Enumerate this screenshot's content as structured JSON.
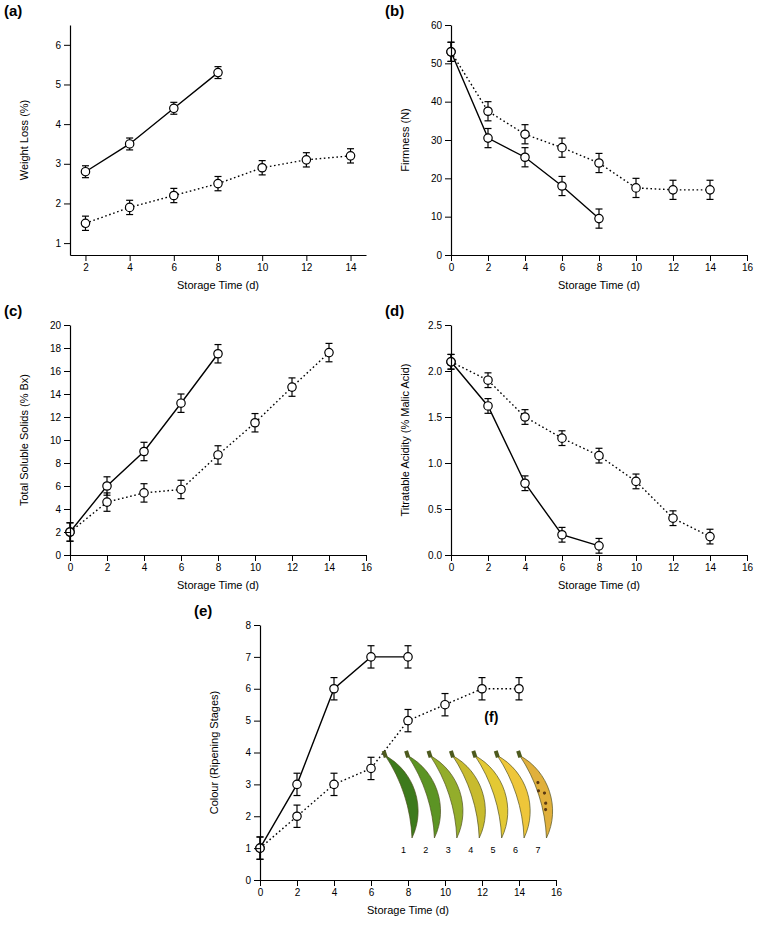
{
  "chart_data": [
    {
      "type": "line",
      "label": "(a)",
      "x_label": "Storage Time (d)",
      "y_label": "Weight Loss (%)",
      "xlim": [
        1.3,
        14.7
      ],
      "xticks": [
        2,
        4,
        6,
        8,
        10,
        12,
        14
      ],
      "ylim": [
        0.7,
        6.5
      ],
      "yticks": [
        1,
        2,
        3,
        4,
        5,
        6
      ],
      "series": [
        {
          "color": "#000000",
          "line_style": "solid",
          "marker": "circle",
          "x": [
            2,
            4,
            6,
            8
          ],
          "values": [
            2.8,
            3.5,
            4.4,
            5.3
          ],
          "errors": [
            0.15,
            0.15,
            0.15,
            0.15
          ]
        },
        {
          "color": "#000000",
          "line_style": "dotted",
          "marker": "circle",
          "x": [
            2,
            4,
            6,
            8,
            10,
            12,
            14
          ],
          "values": [
            1.5,
            1.9,
            2.2,
            2.5,
            2.9,
            3.1,
            3.2
          ],
          "errors": [
            0.18,
            0.18,
            0.18,
            0.18,
            0.18,
            0.18,
            0.18
          ]
        }
      ]
    },
    {
      "type": "line",
      "label": "(b)",
      "x_label": "Storage Time (d)",
      "y_label": "Firmness (N)",
      "xlim": [
        0,
        16
      ],
      "xticks": [
        0,
        2,
        4,
        6,
        8,
        10,
        12,
        14,
        16
      ],
      "ylim": [
        0,
        60
      ],
      "yticks": [
        0,
        10,
        20,
        30,
        40,
        50,
        60
      ],
      "series": [
        {
          "color": "#000000",
          "line_style": "solid",
          "marker": "circle",
          "x": [
            0,
            2,
            4,
            6,
            8
          ],
          "values": [
            53,
            30.5,
            25.5,
            18,
            9.5
          ],
          "errors": [
            2.5,
            2.5,
            2.5,
            2.5,
            2.5
          ]
        },
        {
          "color": "#000000",
          "line_style": "dotted",
          "marker": "circle",
          "x": [
            0,
            2,
            4,
            6,
            8,
            10,
            12,
            14
          ],
          "values": [
            53,
            37.5,
            31.5,
            28,
            24,
            17.5,
            17,
            17
          ],
          "errors": [
            2.5,
            2.5,
            2.5,
            2.5,
            2.5,
            2.5,
            2.5,
            2.5
          ]
        }
      ]
    },
    {
      "type": "line",
      "label": "(c)",
      "x_label": "Storage Time (d)",
      "y_label": "Total Soluble Solids (% Bx)",
      "xlim": [
        0,
        16
      ],
      "xticks": [
        0,
        2,
        4,
        6,
        8,
        10,
        12,
        14,
        16
      ],
      "ylim": [
        0,
        20
      ],
      "yticks": [
        0,
        2,
        4,
        6,
        8,
        10,
        12,
        14,
        16,
        18,
        20
      ],
      "series": [
        {
          "color": "#000000",
          "line_style": "solid",
          "marker": "circle",
          "x": [
            0,
            2,
            4,
            6,
            8
          ],
          "values": [
            2,
            6,
            9,
            13.2,
            17.5
          ],
          "errors": [
            0.8,
            0.8,
            0.8,
            0.8,
            0.8
          ]
        },
        {
          "color": "#000000",
          "line_style": "dotted",
          "marker": "circle",
          "x": [
            0,
            2,
            4,
            6,
            8,
            10,
            12,
            14
          ],
          "values": [
            2,
            4.6,
            5.4,
            5.7,
            8.7,
            11.5,
            14.6,
            17.6
          ],
          "errors": [
            0.8,
            0.8,
            0.8,
            0.8,
            0.8,
            0.8,
            0.8,
            0.8
          ]
        }
      ]
    },
    {
      "type": "line",
      "label": "(d)",
      "x_label": "Storage Time (d)",
      "y_label": "Titratable Acidity (% Malic Acid)",
      "xlim": [
        0,
        16
      ],
      "xticks": [
        0,
        2,
        4,
        6,
        8,
        10,
        12,
        14,
        16
      ],
      "ylim": [
        0,
        2.5
      ],
      "yticks": [
        {
          "value": 0,
          "label": "0.0"
        },
        0.5,
        {
          "value": 1,
          "label": "1.0"
        },
        1.5,
        {
          "value": 2,
          "label": "2.0"
        },
        2.5
      ],
      "series": [
        {
          "color": "#000000",
          "line_style": "solid",
          "marker": "circle",
          "x": [
            0,
            2,
            4,
            6,
            8
          ],
          "values": [
            2.1,
            1.62,
            0.78,
            0.22,
            0.1
          ],
          "errors": [
            0.08,
            0.08,
            0.08,
            0.08,
            0.08
          ]
        },
        {
          "color": "#000000",
          "line_style": "dotted",
          "marker": "circle",
          "x": [
            0,
            2,
            4,
            6,
            8,
            10,
            12,
            14
          ],
          "values": [
            2.1,
            1.9,
            1.5,
            1.27,
            1.08,
            0.8,
            0.4,
            0.2
          ],
          "errors": [
            0.08,
            0.08,
            0.08,
            0.08,
            0.08,
            0.08,
            0.08,
            0.08
          ]
        }
      ]
    },
    {
      "type": "line",
      "label": "(e)",
      "x_label": "Storage Time (d)",
      "y_label": "Colour (Ripening Stages)",
      "xlim": [
        0,
        16
      ],
      "xticks": [
        0,
        2,
        4,
        6,
        8,
        10,
        12,
        14,
        16
      ],
      "ylim": [
        0,
        8
      ],
      "yticks": [
        0,
        1,
        2,
        3,
        4,
        5,
        6,
        7,
        8
      ],
      "series": [
        {
          "color": "#000000",
          "line_style": "solid",
          "marker": "circle",
          "x": [
            0,
            2,
            4,
            6,
            8
          ],
          "values": [
            1,
            3,
            6,
            7,
            7
          ],
          "errors": [
            0.35,
            0.35,
            0.35,
            0.35,
            0.35
          ]
        },
        {
          "color": "#000000",
          "line_style": "dotted",
          "marker": "circle",
          "x": [
            0,
            2,
            4,
            6,
            8,
            10,
            12,
            14
          ],
          "values": [
            1,
            2,
            3,
            3.5,
            5,
            5.5,
            6,
            6
          ],
          "errors": [
            0.35,
            0.35,
            0.35,
            0.35,
            0.35,
            0.35,
            0.35,
            0.35
          ]
        }
      ]
    }
  ],
  "ripening_stages_image": {
    "label": "(f)",
    "stage_labels": [
      "1",
      "2",
      "3",
      "4",
      "5",
      "6",
      "7"
    ]
  }
}
